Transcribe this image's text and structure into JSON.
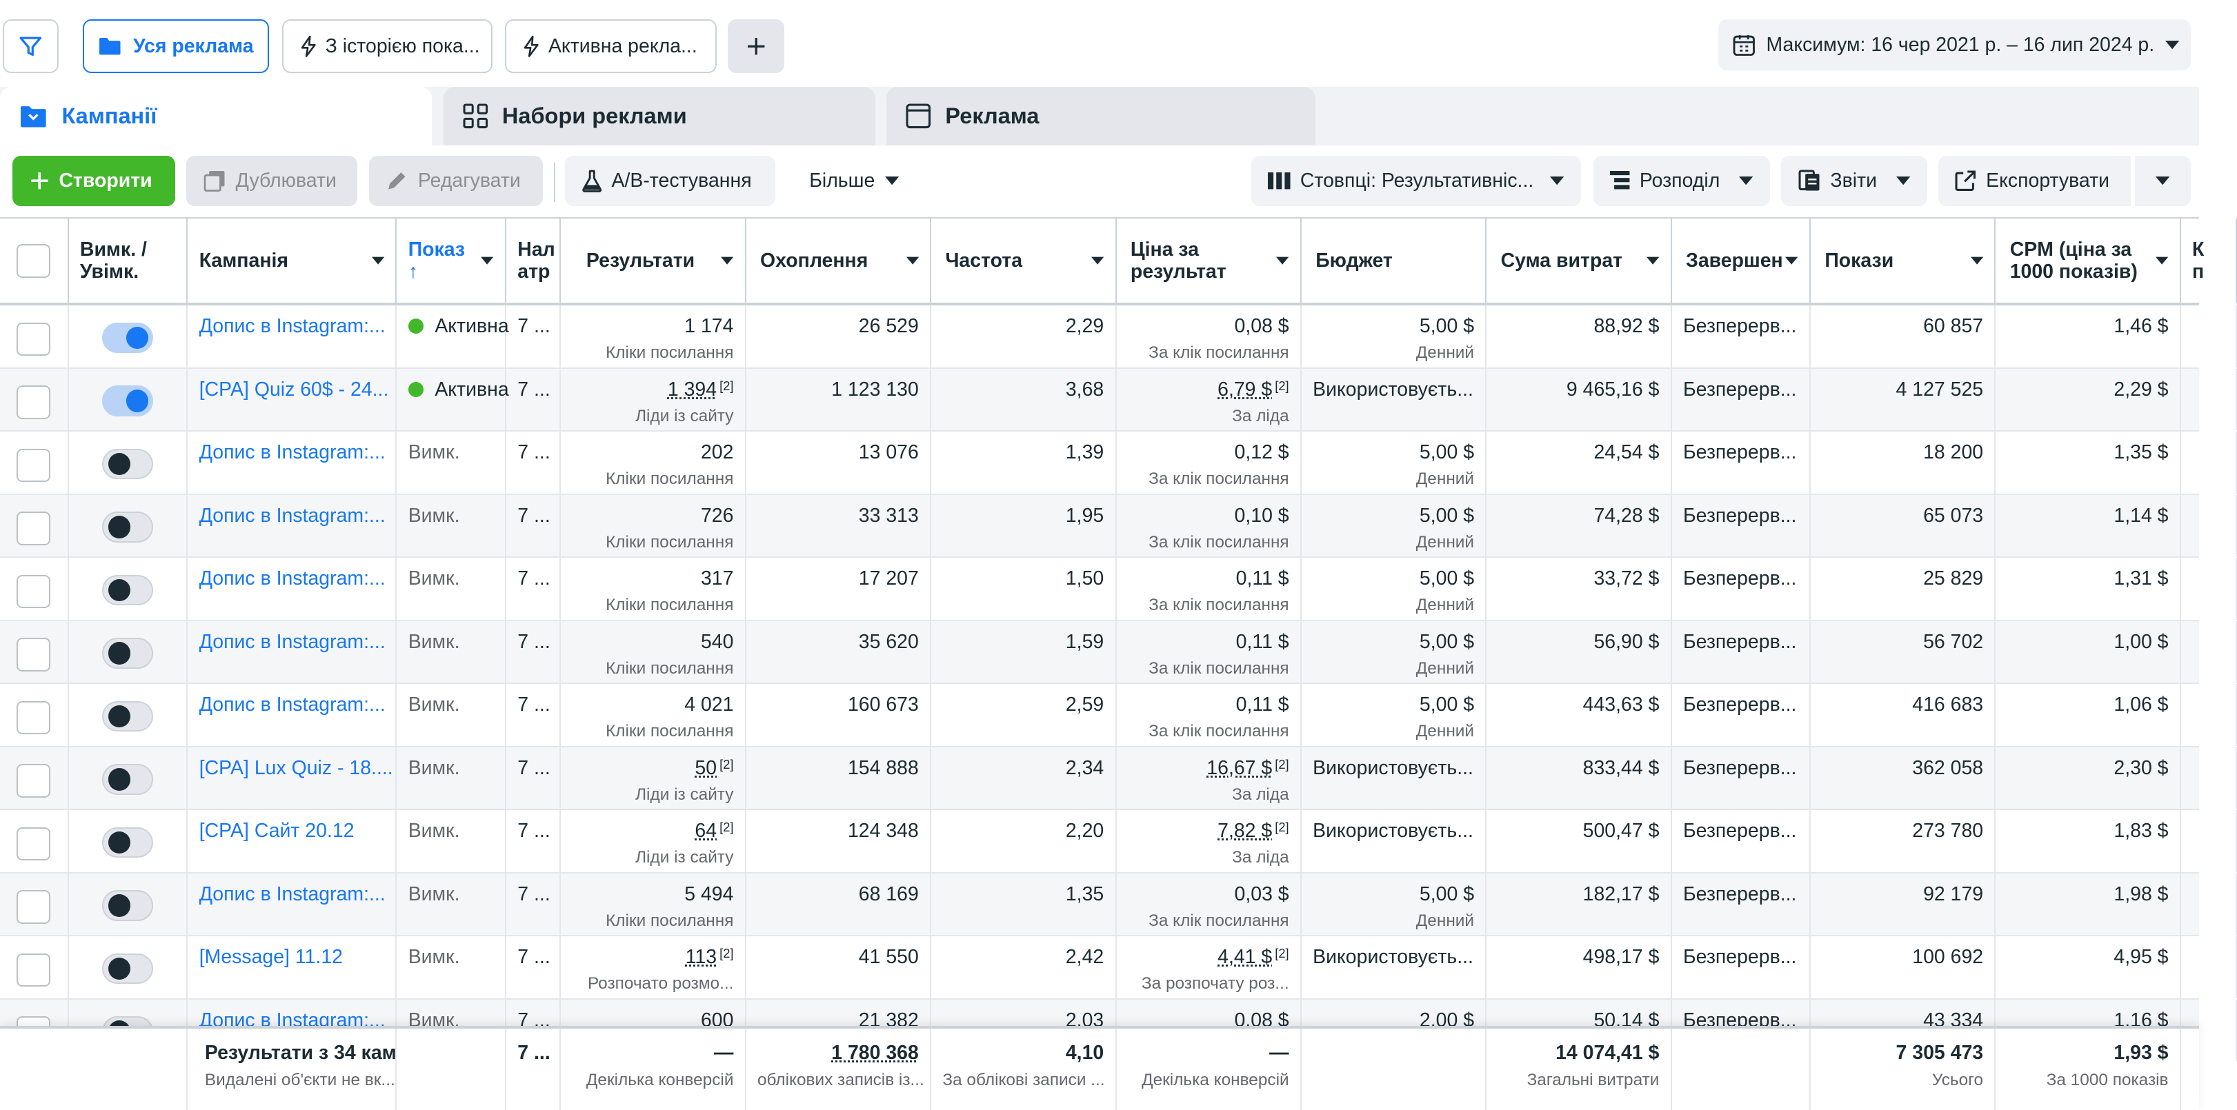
{
  "filters": {
    "all_ads": "Уся реклама",
    "with_history": "З історією пока...",
    "active_ads": "Активна рекла..."
  },
  "date_range": "Максимум: 16 чер 2021 р. – 16 лип 2024 р.",
  "tabs": {
    "campaigns": "Кампанії",
    "ad_sets": "Набори реклами",
    "ads": "Реклама"
  },
  "toolbar": {
    "create": "Створити",
    "duplicate": "Дублювати",
    "edit": "Редагувати",
    "ab_test": "A/B-тестування",
    "more": "Більше",
    "columns": "Стовпці: Результативніс...",
    "breakdown": "Розподіл",
    "reports": "Звіти",
    "export": "Експортувати"
  },
  "columns": {
    "toggle": "Вимк. / Увімк.",
    "campaign": "Кампанія",
    "delivery": "Показ ↑",
    "attribution": "Нал атр",
    "results": "Результати",
    "reach": "Охоплення",
    "frequency": "Частота",
    "cost_per_result": "Ціна за результат",
    "budget": "Бюджет",
    "amount_spent": "Сума витрат",
    "ends": "Завершен",
    "impressions": "Покази",
    "cpm": "CPM (ціна за 1000 показів)",
    "extra": "К п"
  },
  "rows": [
    {
      "on": true,
      "name": "Допис в Instagram:...",
      "delivery": "Активна",
      "active": true,
      "attr": "7 ...",
      "results": "1 174",
      "results_sub": "Кліки посилання",
      "results_flag": false,
      "reach": "26 529",
      "freq": "2,29",
      "cpr": "0,08 $",
      "cpr_sub": "За клік посилання",
      "cpr_flag": false,
      "budget": "5,00 $",
      "budget_sub": "Денний",
      "budget_pos": "right",
      "spent": "88,92 $",
      "ends": "Безперерв...",
      "impr": "60 857",
      "cpm": "1,46 $"
    },
    {
      "on": true,
      "name": "[CPA] Quiz 60$ - 24...",
      "delivery": "Активна",
      "active": true,
      "attr": "7 ...",
      "results": "1 394",
      "results_sub": "Ліди із сайту",
      "results_flag": true,
      "reach": "1 123 130",
      "freq": "3,68",
      "cpr": "6,79 $",
      "cpr_sub": "За ліда",
      "cpr_flag": true,
      "budget": "Використовуєть...",
      "budget_sub": "",
      "budget_pos": "left",
      "spent": "9 465,16 $",
      "ends": "Безперерв...",
      "impr": "4 127 525",
      "cpm": "2,29 $"
    },
    {
      "on": false,
      "name": "Допис в Instagram:...",
      "delivery": "Вимк.",
      "active": false,
      "attr": "7 ...",
      "results": "202",
      "results_sub": "Кліки посилання",
      "results_flag": false,
      "reach": "13 076",
      "freq": "1,39",
      "cpr": "0,12 $",
      "cpr_sub": "За клік посилання",
      "cpr_flag": false,
      "budget": "5,00 $",
      "budget_sub": "Денний",
      "budget_pos": "right",
      "spent": "24,54 $",
      "ends": "Безперерв...",
      "impr": "18 200",
      "cpm": "1,35 $"
    },
    {
      "on": false,
      "name": "Допис в Instagram:...",
      "delivery": "Вимк.",
      "active": false,
      "attr": "7 ...",
      "results": "726",
      "results_sub": "Кліки посилання",
      "results_flag": false,
      "reach": "33 313",
      "freq": "1,95",
      "cpr": "0,10 $",
      "cpr_sub": "За клік посилання",
      "cpr_flag": false,
      "budget": "5,00 $",
      "budget_sub": "Денний",
      "budget_pos": "right",
      "spent": "74,28 $",
      "ends": "Безперерв...",
      "impr": "65 073",
      "cpm": "1,14 $"
    },
    {
      "on": false,
      "name": "Допис в Instagram:...",
      "delivery": "Вимк.",
      "active": false,
      "attr": "7 ...",
      "results": "317",
      "results_sub": "Кліки посилання",
      "results_flag": false,
      "reach": "17 207",
      "freq": "1,50",
      "cpr": "0,11 $",
      "cpr_sub": "За клік посилання",
      "cpr_flag": false,
      "budget": "5,00 $",
      "budget_sub": "Денний",
      "budget_pos": "right",
      "spent": "33,72 $",
      "ends": "Безперерв...",
      "impr": "25 829",
      "cpm": "1,31 $"
    },
    {
      "on": false,
      "name": "Допис в Instagram:...",
      "delivery": "Вимк.",
      "active": false,
      "attr": "7 ...",
      "results": "540",
      "results_sub": "Кліки посилання",
      "results_flag": false,
      "reach": "35 620",
      "freq": "1,59",
      "cpr": "0,11 $",
      "cpr_sub": "За клік посилання",
      "cpr_flag": false,
      "budget": "5,00 $",
      "budget_sub": "Денний",
      "budget_pos": "right",
      "spent": "56,90 $",
      "ends": "Безперерв...",
      "impr": "56 702",
      "cpm": "1,00 $"
    },
    {
      "on": false,
      "name": "Допис в Instagram:...",
      "delivery": "Вимк.",
      "active": false,
      "attr": "7 ...",
      "results": "4 021",
      "results_sub": "Кліки посилання",
      "results_flag": false,
      "reach": "160 673",
      "freq": "2,59",
      "cpr": "0,11 $",
      "cpr_sub": "За клік посилання",
      "cpr_flag": false,
      "budget": "5,00 $",
      "budget_sub": "Денний",
      "budget_pos": "right",
      "spent": "443,63 $",
      "ends": "Безперерв...",
      "impr": "416 683",
      "cpm": "1,06 $"
    },
    {
      "on": false,
      "name": "[CPA] Lux Quiz - 18....",
      "delivery": "Вимк.",
      "active": false,
      "attr": "7 ...",
      "results": "50",
      "results_sub": "Ліди із сайту",
      "results_flag": true,
      "reach": "154 888",
      "freq": "2,34",
      "cpr": "16,67 $",
      "cpr_sub": "За ліда",
      "cpr_flag": true,
      "budget": "Використовуєть...",
      "budget_sub": "",
      "budget_pos": "left",
      "spent": "833,44 $",
      "ends": "Безперерв...",
      "impr": "362 058",
      "cpm": "2,30 $"
    },
    {
      "on": false,
      "name": "[CPA] Сайт 20.12",
      "delivery": "Вимк.",
      "active": false,
      "attr": "7 ...",
      "results": "64",
      "results_sub": "Ліди із сайту",
      "results_flag": true,
      "reach": "124 348",
      "freq": "2,20",
      "cpr": "7,82 $",
      "cpr_sub": "За ліда",
      "cpr_flag": true,
      "budget": "Використовуєть...",
      "budget_sub": "",
      "budget_pos": "left",
      "spent": "500,47 $",
      "ends": "Безперерв...",
      "impr": "273 780",
      "cpm": "1,83 $"
    },
    {
      "on": false,
      "name": "Допис в Instagram:...",
      "delivery": "Вимк.",
      "active": false,
      "attr": "7 ...",
      "results": "5 494",
      "results_sub": "Кліки посилання",
      "results_flag": false,
      "reach": "68 169",
      "freq": "1,35",
      "cpr": "0,03 $",
      "cpr_sub": "За клік посилання",
      "cpr_flag": false,
      "budget": "5,00 $",
      "budget_sub": "Денний",
      "budget_pos": "right",
      "spent": "182,17 $",
      "ends": "Безперерв...",
      "impr": "92 179",
      "cpm": "1,98 $"
    },
    {
      "on": false,
      "name": "[Message] 11.12",
      "delivery": "Вимк.",
      "active": false,
      "attr": "7 ...",
      "results": "113",
      "results_sub": "Розпочато розмо...",
      "results_flag": true,
      "reach": "41 550",
      "freq": "2,42",
      "cpr": "4,41 $",
      "cpr_sub": "За розпочату роз...",
      "cpr_flag": true,
      "budget": "Використовуєть...",
      "budget_sub": "",
      "budget_pos": "left",
      "spent": "498,17 $",
      "ends": "Безперерв...",
      "impr": "100 692",
      "cpm": "4,95 $"
    },
    {
      "on": false,
      "name": "Допис в Instagram:...",
      "delivery": "Вимк.",
      "active": false,
      "attr": "7 ...",
      "results": "600",
      "results_sub": "",
      "results_flag": false,
      "reach": "21 382",
      "freq": "2,03",
      "cpr": "0,08 $",
      "cpr_sub": "",
      "cpr_flag": false,
      "budget": "2,00 $",
      "budget_sub": "",
      "budget_pos": "right",
      "spent": "50,14 $",
      "ends": "Безперерв...",
      "impr": "43 334",
      "cpm": "1,16 $"
    }
  ],
  "footnote_mark": "[2]",
  "totals": {
    "title": "Результати з 34 кам",
    "title_sub": "Видалені об'єкти не вк...",
    "attr": "7 ...",
    "results": "—",
    "results_sub": "Декілька конверсій",
    "reach": "1 780 368",
    "reach_sub": "облікових записів із...",
    "freq": "4,10",
    "freq_sub": "За облікові записи ...",
    "cpr": "—",
    "cpr_sub": "Декілька конверсій",
    "spent": "14 074,41 $",
    "spent_sub": "Загальні витрати",
    "impr": "7 305 473",
    "impr_sub": "Усього",
    "cpm": "1,93 $",
    "cpm_sub": "За 1000 показів"
  }
}
